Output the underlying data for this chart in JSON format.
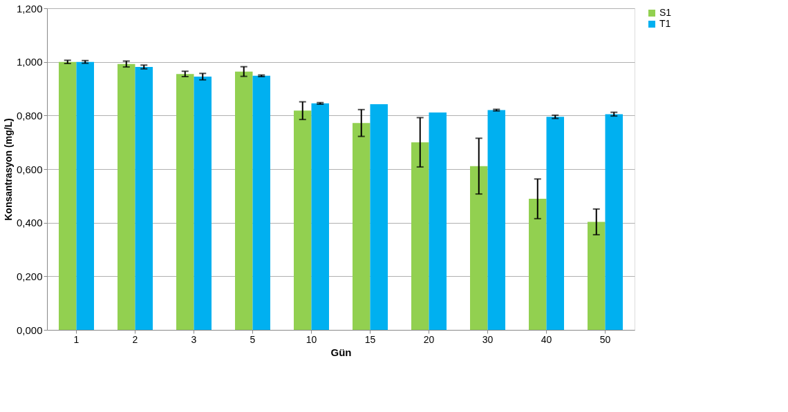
{
  "chart_data": {
    "type": "bar",
    "xlabel": "Gün",
    "ylabel": "Konsantrasyon (mg/L)",
    "categories": [
      "1",
      "2",
      "3",
      "5",
      "10",
      "15",
      "20",
      "30",
      "40",
      "50"
    ],
    "series": [
      {
        "name": "S1",
        "color": "#92d050",
        "values": [
          1.0,
          0.992,
          0.955,
          0.964,
          0.818,
          0.772,
          0.7,
          0.611,
          0.489,
          0.403
        ],
        "errors": [
          0.006,
          0.011,
          0.01,
          0.018,
          0.033,
          0.05,
          0.092,
          0.104,
          0.074,
          0.048
        ]
      },
      {
        "name": "T1",
        "color": "#00b0f0",
        "values": [
          1.0,
          0.981,
          0.945,
          0.948,
          0.845,
          0.842,
          0.811,
          0.82,
          0.795,
          0.805
        ],
        "errors": [
          0.005,
          0.007,
          0.012,
          0.003,
          0.003,
          null,
          null,
          0.003,
          0.006,
          0.007
        ]
      }
    ],
    "ylim": [
      0,
      1.2
    ],
    "yticks": [
      {
        "value": 0,
        "label": "0,000"
      },
      {
        "value": 0.2,
        "label": "0,200"
      },
      {
        "value": 0.4,
        "label": "0,400"
      },
      {
        "value": 0.6,
        "label": "0,600"
      },
      {
        "value": 0.8,
        "label": "0,800"
      },
      {
        "value": 1.0,
        "label": "1,000"
      },
      {
        "value": 1.2,
        "label": "1,200"
      }
    ],
    "grid": "y",
    "legend": "right"
  }
}
